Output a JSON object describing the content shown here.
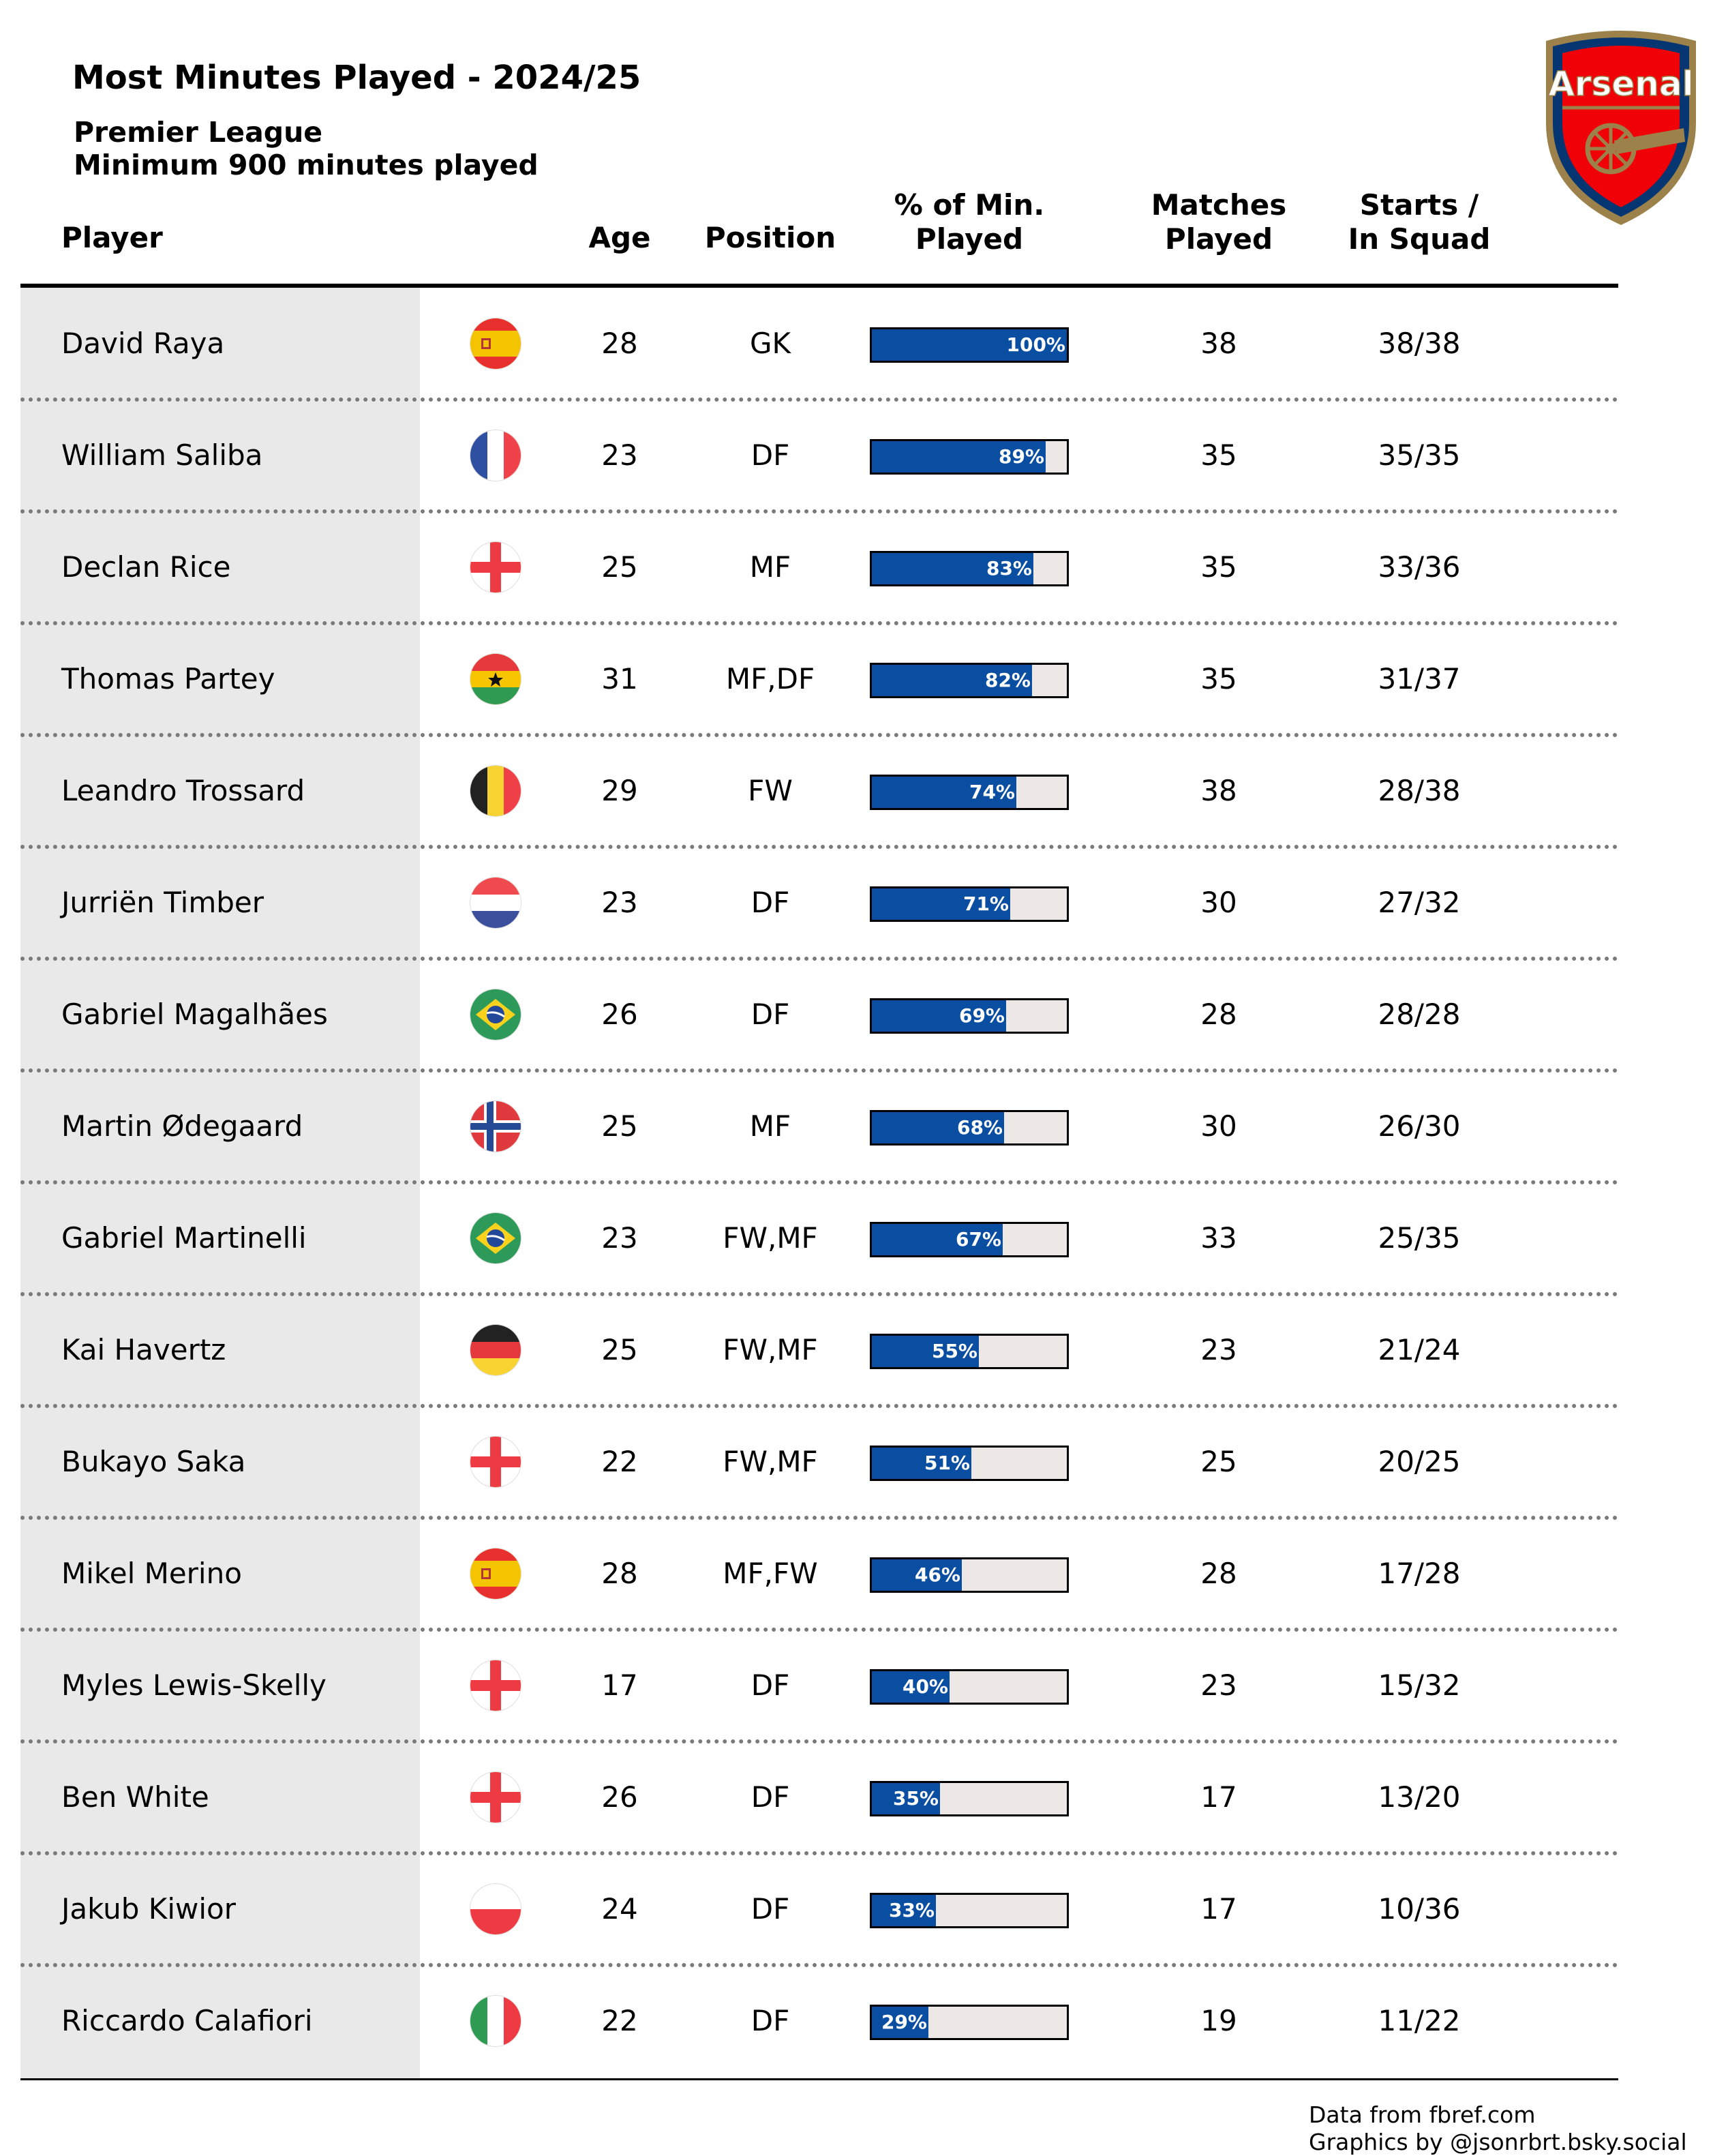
{
  "header": {
    "title": "Most Minutes Played - 2024/25",
    "subtitle_line1": "Premier League",
    "subtitle_line2": "Minimum 900 minutes played",
    "crest_text": "Arsenal"
  },
  "columns": {
    "player": "Player",
    "age": "Age",
    "position": "Position",
    "pct_line1": "% of Min.",
    "pct_line2": "Played",
    "matches_line1": "Matches",
    "matches_line2": "Played",
    "starts_line1": "Starts /",
    "starts_line2": "In Squad"
  },
  "chart_data": {
    "type": "table",
    "bar_column": "% of Min. Played",
    "bar_range": [
      0,
      100
    ],
    "colors": {
      "bar_fill": "#0a4ea2",
      "bar_track": "#ede8e6",
      "player_column_bg": "#e9e9e9"
    },
    "rows": [
      {
        "player": "David Raya",
        "flag": "spain-flag",
        "age": "28",
        "position": "GK",
        "pct": 100,
        "pct_label": "100%",
        "matches": "38",
        "starts": "38/38"
      },
      {
        "player": "William Saliba",
        "flag": "france-flag",
        "age": "23",
        "position": "DF",
        "pct": 89,
        "pct_label": "89%",
        "matches": "35",
        "starts": "35/35"
      },
      {
        "player": "Declan Rice",
        "flag": "england-flag",
        "age": "25",
        "position": "MF",
        "pct": 83,
        "pct_label": "83%",
        "matches": "35",
        "starts": "33/36"
      },
      {
        "player": "Thomas Partey",
        "flag": "ghana-flag",
        "age": "31",
        "position": "MF,DF",
        "pct": 82,
        "pct_label": "82%",
        "matches": "35",
        "starts": "31/37"
      },
      {
        "player": "Leandro Trossard",
        "flag": "belgium-flag",
        "age": "29",
        "position": "FW",
        "pct": 74,
        "pct_label": "74%",
        "matches": "38",
        "starts": "28/38"
      },
      {
        "player": "Jurriën Timber",
        "flag": "netherlands-flag",
        "age": "23",
        "position": "DF",
        "pct": 71,
        "pct_label": "71%",
        "matches": "30",
        "starts": "27/32"
      },
      {
        "player": "Gabriel Magalhães",
        "flag": "brazil-flag",
        "age": "26",
        "position": "DF",
        "pct": 69,
        "pct_label": "69%",
        "matches": "28",
        "starts": "28/28"
      },
      {
        "player": "Martin Ødegaard",
        "flag": "norway-flag",
        "age": "25",
        "position": "MF",
        "pct": 68,
        "pct_label": "68%",
        "matches": "30",
        "starts": "26/30"
      },
      {
        "player": "Gabriel Martinelli",
        "flag": "brazil-flag",
        "age": "23",
        "position": "FW,MF",
        "pct": 67,
        "pct_label": "67%",
        "matches": "33",
        "starts": "25/35"
      },
      {
        "player": "Kai Havertz",
        "flag": "germany-flag",
        "age": "25",
        "position": "FW,MF",
        "pct": 55,
        "pct_label": "55%",
        "matches": "23",
        "starts": "21/24"
      },
      {
        "player": "Bukayo Saka",
        "flag": "england-flag",
        "age": "22",
        "position": "FW,MF",
        "pct": 51,
        "pct_label": "51%",
        "matches": "25",
        "starts": "20/25"
      },
      {
        "player": "Mikel Merino",
        "flag": "spain-flag",
        "age": "28",
        "position": "MF,FW",
        "pct": 46,
        "pct_label": "46%",
        "matches": "28",
        "starts": "17/28"
      },
      {
        "player": "Myles Lewis-Skelly",
        "flag": "england-flag",
        "age": "17",
        "position": "DF",
        "pct": 40,
        "pct_label": "40%",
        "matches": "23",
        "starts": "15/32"
      },
      {
        "player": "Ben White",
        "flag": "england-flag",
        "age": "26",
        "position": "DF",
        "pct": 35,
        "pct_label": "35%",
        "matches": "17",
        "starts": "13/20"
      },
      {
        "player": "Jakub Kiwior",
        "flag": "poland-flag",
        "age": "24",
        "position": "DF",
        "pct": 33,
        "pct_label": "33%",
        "matches": "17",
        "starts": "10/36"
      },
      {
        "player": "Riccardo Calafiori",
        "flag": "italy-flag",
        "age": "22",
        "position": "DF",
        "pct": 29,
        "pct_label": "29%",
        "matches": "19",
        "starts": "11/22"
      }
    ]
  },
  "footer": {
    "line1": "Data from fbref.com",
    "line2": "Graphics by @jsonrbrt.bsky.social"
  }
}
